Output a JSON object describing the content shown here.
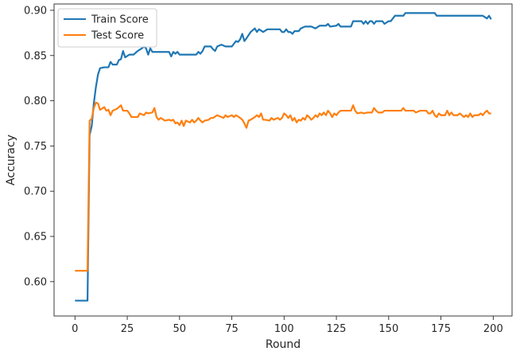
{
  "chart_data": {
    "type": "line",
    "title": "",
    "xlabel": "Round",
    "ylabel": "Accuracy",
    "xlim": [
      -10,
      209
    ],
    "ylim": [
      0.562,
      0.907
    ],
    "xticks": [
      0,
      25,
      50,
      75,
      100,
      125,
      150,
      175,
      200
    ],
    "yticks": [
      0.6,
      0.65,
      0.7,
      0.75,
      0.8,
      0.85,
      0.9
    ],
    "grid": false,
    "legend": "top-left",
    "series": [
      {
        "name": "Train Score",
        "color": "#1f77b4",
        "points": [
          [
            0,
            0.579
          ],
          [
            6,
            0.579
          ],
          [
            7,
            0.762
          ],
          [
            8,
            0.772
          ],
          [
            9,
            0.797
          ],
          [
            10,
            0.815
          ],
          [
            11,
            0.829
          ],
          [
            12,
            0.836
          ],
          [
            14,
            0.837
          ],
          [
            16,
            0.837
          ],
          [
            17,
            0.843
          ],
          [
            18,
            0.84
          ],
          [
            20,
            0.84
          ],
          [
            21,
            0.845
          ],
          [
            22,
            0.846
          ],
          [
            23,
            0.855
          ],
          [
            24,
            0.848
          ],
          [
            26,
            0.851
          ],
          [
            28,
            0.851
          ],
          [
            30,
            0.855
          ],
          [
            32,
            0.858
          ],
          [
            33,
            0.86
          ],
          [
            34,
            0.858
          ],
          [
            35,
            0.851
          ],
          [
            36,
            0.858
          ],
          [
            37,
            0.854
          ],
          [
            40,
            0.854
          ],
          [
            45,
            0.854
          ],
          [
            46,
            0.849
          ],
          [
            47,
            0.854
          ],
          [
            48,
            0.852
          ],
          [
            49,
            0.854
          ],
          [
            50,
            0.851
          ],
          [
            55,
            0.851
          ],
          [
            58,
            0.851
          ],
          [
            59,
            0.854
          ],
          [
            60,
            0.852
          ],
          [
            61,
            0.855
          ],
          [
            62,
            0.86
          ],
          [
            65,
            0.86
          ],
          [
            66,
            0.857
          ],
          [
            67,
            0.855
          ],
          [
            68,
            0.86
          ],
          [
            70,
            0.862
          ],
          [
            72,
            0.86
          ],
          [
            75,
            0.86
          ],
          [
            77,
            0.866
          ],
          [
            78,
            0.865
          ],
          [
            79,
            0.868
          ],
          [
            80,
            0.874
          ],
          [
            81,
            0.866
          ],
          [
            82,
            0.869
          ],
          [
            84,
            0.876
          ],
          [
            86,
            0.88
          ],
          [
            87,
            0.876
          ],
          [
            88,
            0.879
          ],
          [
            90,
            0.876
          ],
          [
            92,
            0.879
          ],
          [
            95,
            0.879
          ],
          [
            98,
            0.879
          ],
          [
            99,
            0.876
          ],
          [
            100,
            0.876
          ],
          [
            101,
            0.879
          ],
          [
            102,
            0.876
          ],
          [
            103,
            0.876
          ],
          [
            104,
            0.874
          ],
          [
            105,
            0.877
          ],
          [
            107,
            0.877
          ],
          [
            108,
            0.88
          ],
          [
            110,
            0.882
          ],
          [
            113,
            0.882
          ],
          [
            115,
            0.88
          ],
          [
            117,
            0.883
          ],
          [
            120,
            0.883
          ],
          [
            121,
            0.885
          ],
          [
            122,
            0.882
          ],
          [
            125,
            0.883
          ],
          [
            126,
            0.885
          ],
          [
            127,
            0.882
          ],
          [
            132,
            0.882
          ],
          [
            133,
            0.888
          ],
          [
            135,
            0.888
          ],
          [
            137,
            0.888
          ],
          [
            138,
            0.885
          ],
          [
            139,
            0.888
          ],
          [
            140,
            0.885
          ],
          [
            141,
            0.888
          ],
          [
            142,
            0.888
          ],
          [
            143,
            0.885
          ],
          [
            144,
            0.888
          ],
          [
            147,
            0.888
          ],
          [
            148,
            0.885
          ],
          [
            150,
            0.888
          ],
          [
            151,
            0.888
          ],
          [
            152,
            0.891
          ],
          [
            153,
            0.894
          ],
          [
            157,
            0.894
          ],
          [
            158,
            0.897
          ],
          [
            160,
            0.897
          ],
          [
            172,
            0.897
          ],
          [
            173,
            0.894
          ],
          [
            180,
            0.894
          ],
          [
            195,
            0.894
          ],
          [
            197,
            0.891
          ],
          [
            198,
            0.894
          ],
          [
            199,
            0.89
          ]
        ]
      },
      {
        "name": "Test Score",
        "color": "#ff7f0e",
        "points": [
          [
            0,
            0.612
          ],
          [
            6,
            0.612
          ],
          [
            7,
            0.778
          ],
          [
            8,
            0.78
          ],
          [
            9,
            0.792
          ],
          [
            10,
            0.798
          ],
          [
            11,
            0.797
          ],
          [
            12,
            0.79
          ],
          [
            14,
            0.793
          ],
          [
            15,
            0.789
          ],
          [
            16,
            0.79
          ],
          [
            17,
            0.784
          ],
          [
            18,
            0.789
          ],
          [
            20,
            0.791
          ],
          [
            22,
            0.795
          ],
          [
            23,
            0.789
          ],
          [
            25,
            0.789
          ],
          [
            26,
            0.786
          ],
          [
            27,
            0.782
          ],
          [
            30,
            0.782
          ],
          [
            31,
            0.786
          ],
          [
            33,
            0.784
          ],
          [
            34,
            0.787
          ],
          [
            35,
            0.786
          ],
          [
            37,
            0.787
          ],
          [
            38,
            0.792
          ],
          [
            39,
            0.782
          ],
          [
            40,
            0.779
          ],
          [
            41,
            0.781
          ],
          [
            43,
            0.778
          ],
          [
            45,
            0.779
          ],
          [
            46,
            0.778
          ],
          [
            47,
            0.779
          ],
          [
            48,
            0.775
          ],
          [
            49,
            0.776
          ],
          [
            50,
            0.773
          ],
          [
            51,
            0.778
          ],
          [
            52,
            0.772
          ],
          [
            53,
            0.778
          ],
          [
            55,
            0.776
          ],
          [
            56,
            0.779
          ],
          [
            57,
            0.776
          ],
          [
            58,
            0.778
          ],
          [
            59,
            0.781
          ],
          [
            60,
            0.778
          ],
          [
            61,
            0.776
          ],
          [
            62,
            0.778
          ],
          [
            64,
            0.779
          ],
          [
            65,
            0.781
          ],
          [
            66,
            0.781
          ],
          [
            68,
            0.784
          ],
          [
            70,
            0.782
          ],
          [
            71,
            0.781
          ],
          [
            72,
            0.784
          ],
          [
            73,
            0.782
          ],
          [
            75,
            0.784
          ],
          [
            76,
            0.782
          ],
          [
            77,
            0.784
          ],
          [
            79,
            0.781
          ],
          [
            80,
            0.779
          ],
          [
            81,
            0.775
          ],
          [
            82,
            0.77
          ],
          [
            83,
            0.778
          ],
          [
            84,
            0.779
          ],
          [
            86,
            0.782
          ],
          [
            87,
            0.784
          ],
          [
            88,
            0.782
          ],
          [
            89,
            0.786
          ],
          [
            90,
            0.779
          ],
          [
            91,
            0.779
          ],
          [
            93,
            0.778
          ],
          [
            94,
            0.781
          ],
          [
            95,
            0.779
          ],
          [
            97,
            0.781
          ],
          [
            98,
            0.779
          ],
          [
            99,
            0.781
          ],
          [
            100,
            0.786
          ],
          [
            101,
            0.784
          ],
          [
            102,
            0.781
          ],
          [
            103,
            0.784
          ],
          [
            104,
            0.778
          ],
          [
            105,
            0.781
          ],
          [
            106,
            0.776
          ],
          [
            107,
            0.779
          ],
          [
            108,
            0.778
          ],
          [
            109,
            0.781
          ],
          [
            110,
            0.779
          ],
          [
            111,
            0.784
          ],
          [
            112,
            0.782
          ],
          [
            113,
            0.779
          ],
          [
            114,
            0.781
          ],
          [
            115,
            0.784
          ],
          [
            116,
            0.782
          ],
          [
            117,
            0.786
          ],
          [
            118,
            0.784
          ],
          [
            119,
            0.787
          ],
          [
            120,
            0.784
          ],
          [
            121,
            0.789
          ],
          [
            122,
            0.786
          ],
          [
            123,
            0.782
          ],
          [
            124,
            0.786
          ],
          [
            125,
            0.784
          ],
          [
            126,
            0.787
          ],
          [
            127,
            0.789
          ],
          [
            128,
            0.789
          ],
          [
            132,
            0.789
          ],
          [
            133,
            0.795
          ],
          [
            134,
            0.789
          ],
          [
            135,
            0.786
          ],
          [
            137,
            0.787
          ],
          [
            138,
            0.786
          ],
          [
            140,
            0.787
          ],
          [
            142,
            0.787
          ],
          [
            143,
            0.792
          ],
          [
            144,
            0.789
          ],
          [
            145,
            0.787
          ],
          [
            147,
            0.787
          ],
          [
            148,
            0.789
          ],
          [
            150,
            0.789
          ],
          [
            156,
            0.789
          ],
          [
            157,
            0.792
          ],
          [
            158,
            0.789
          ],
          [
            162,
            0.789
          ],
          [
            163,
            0.787
          ],
          [
            165,
            0.789
          ],
          [
            166,
            0.789
          ],
          [
            168,
            0.789
          ],
          [
            169,
            0.786
          ],
          [
            170,
            0.786
          ],
          [
            171,
            0.789
          ],
          [
            172,
            0.784
          ],
          [
            173,
            0.782
          ],
          [
            174,
            0.786
          ],
          [
            175,
            0.784
          ],
          [
            177,
            0.784
          ],
          [
            178,
            0.789
          ],
          [
            179,
            0.784
          ],
          [
            180,
            0.787
          ],
          [
            181,
            0.784
          ],
          [
            183,
            0.784
          ],
          [
            184,
            0.786
          ],
          [
            186,
            0.782
          ],
          [
            187,
            0.784
          ],
          [
            188,
            0.782
          ],
          [
            189,
            0.786
          ],
          [
            190,
            0.782
          ],
          [
            191,
            0.784
          ],
          [
            193,
            0.784
          ],
          [
            194,
            0.786
          ],
          [
            195,
            0.784
          ],
          [
            196,
            0.787
          ],
          [
            197,
            0.789
          ],
          [
            198,
            0.786
          ],
          [
            199,
            0.786
          ]
        ]
      }
    ]
  }
}
